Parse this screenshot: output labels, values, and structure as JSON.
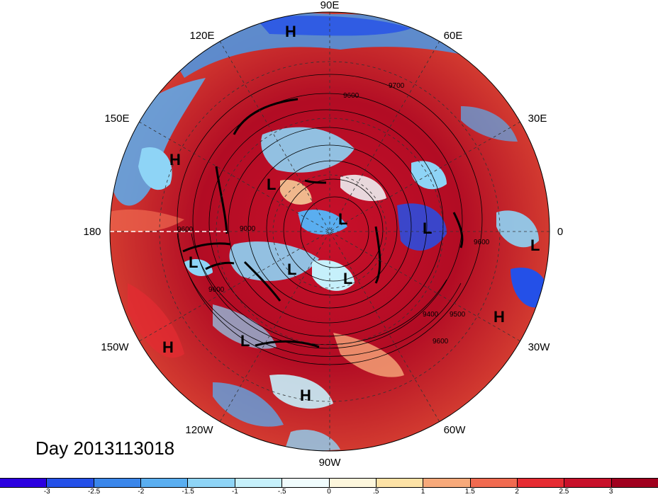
{
  "date_label": "Day 2013113018",
  "longitude_labels": {
    "e90": "90E",
    "e120": "120E",
    "e60": "60E",
    "e150": "150E",
    "e30": "30E",
    "w180": "180",
    "zero": "0",
    "w150": "150W",
    "w30": "30W",
    "w120": "120W",
    "w60": "60W",
    "w90": "90W"
  },
  "systems": {
    "h1": "H",
    "h2": "H",
    "h3": "H",
    "h4": "H",
    "h5": "H",
    "l1": "L",
    "l2": "L",
    "l3": "L",
    "l4": "L",
    "l5": "L",
    "l6": "L",
    "l7": "L",
    "l8": "L"
  },
  "contour_labels": {
    "c9600a": "9600",
    "c9700": "9700",
    "c9600b": "9600",
    "c9600c": "9600",
    "c9400": "9400",
    "c9600d": "9600",
    "c9500": "9500",
    "c9000": "9000",
    "c9600e": "9600"
  },
  "colorbar": {
    "colors": [
      "#2b00e0",
      "#2450e8",
      "#3a86ea",
      "#5aaef0",
      "#8ed4f6",
      "#c6f0fb",
      "#f0fcfd",
      "#fdf6dc",
      "#fde2a6",
      "#f7a97a",
      "#f06a50",
      "#e52b32",
      "#c8102a",
      "#a0001e"
    ],
    "ticks": [
      "-3",
      "-2.5",
      "-2",
      "-1.5",
      "-1",
      "-.5",
      "0",
      ".5",
      "1",
      "1.5",
      "2",
      "2.5",
      "3"
    ]
  }
}
